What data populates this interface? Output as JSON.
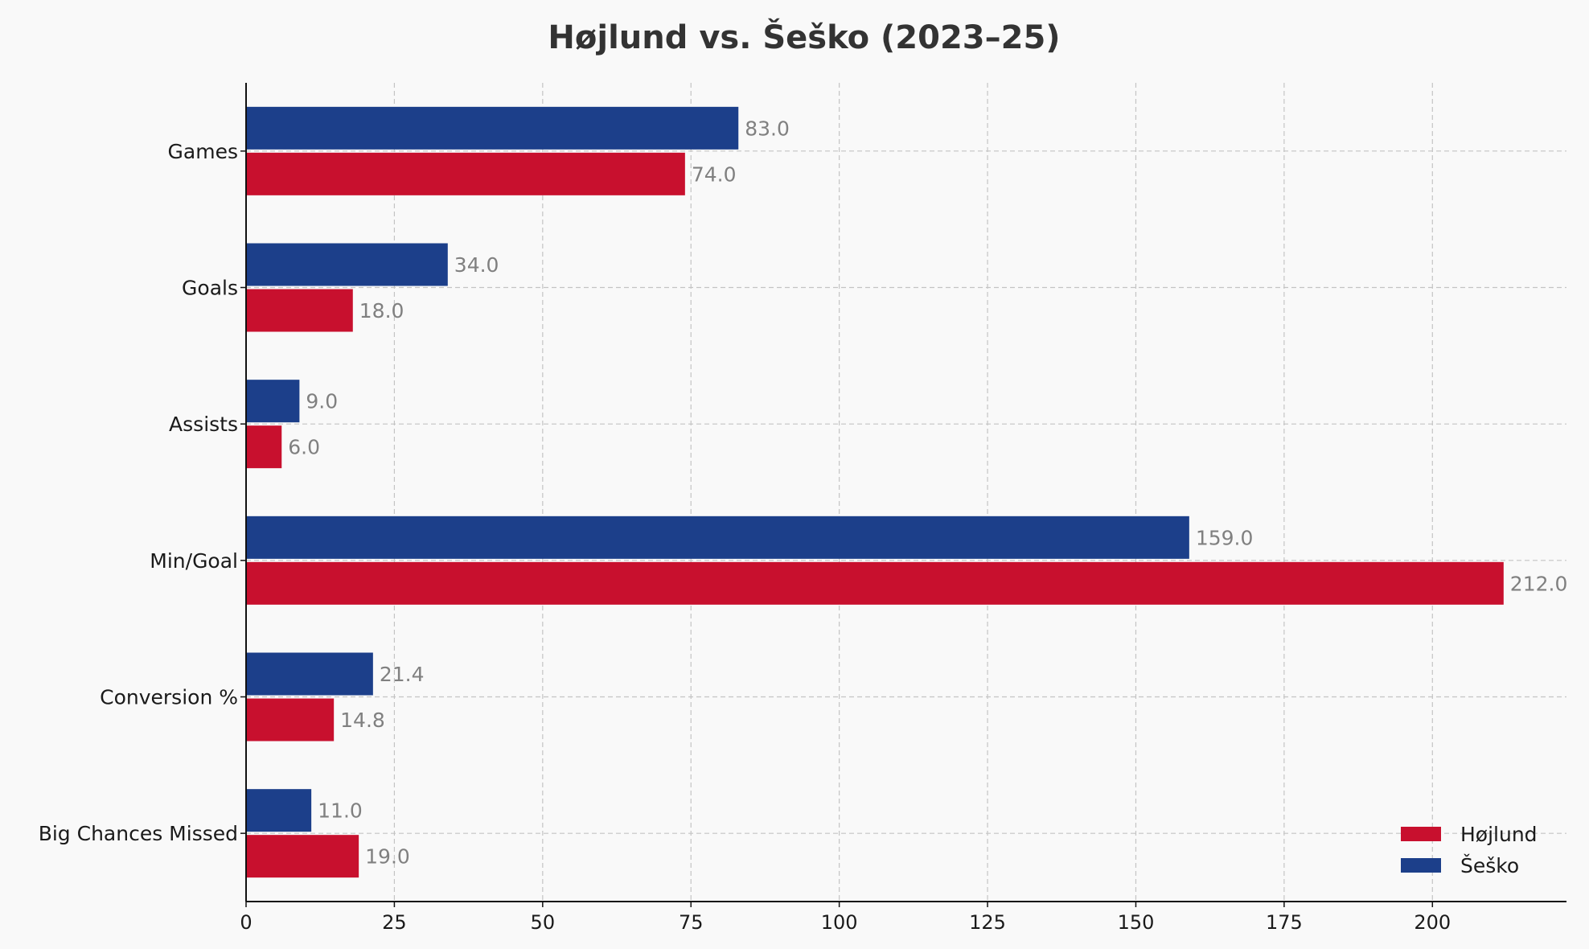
{
  "chart_data": {
    "type": "bar",
    "orientation": "horizontal",
    "title": "Højlund vs. Šeško (2023–25)",
    "xlabel": "",
    "ylabel": "",
    "categories": [
      "Games",
      "Goals",
      "Assists",
      "Min/Goal",
      "Conversion %",
      "Big Chances Missed"
    ],
    "series": [
      {
        "name": "Højlund",
        "color": "#c8102e",
        "values": [
          74.0,
          18.0,
          6.0,
          212.0,
          14.8,
          19.0
        ]
      },
      {
        "name": "Šeško",
        "color": "#1c3f8a",
        "values": [
          83.0,
          34.0,
          9.0,
          159.0,
          21.4,
          11.0
        ]
      }
    ],
    "xlim": [
      0,
      222.6
    ],
    "xticks": [
      0,
      25,
      50,
      75,
      100,
      125,
      150,
      175,
      200
    ],
    "grid": true,
    "legend": {
      "position": "bottom-right"
    },
    "value_label_format": "one-decimal"
  }
}
